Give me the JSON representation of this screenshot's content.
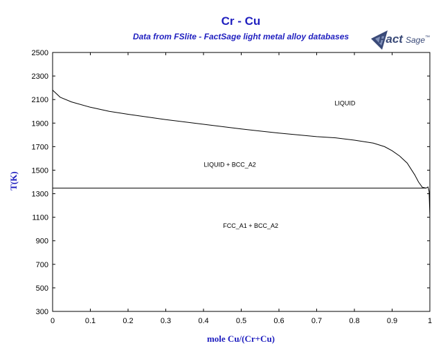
{
  "chart_data": {
    "type": "line",
    "title": "Cr - Cu",
    "subtitle": "Data from FSlite - FactSage light metal alloy databases",
    "xlabel": "mole Cu/(Cr+Cu)",
    "ylabel": "T(K)",
    "xlim": [
      0,
      1
    ],
    "ylim": [
      300,
      2500
    ],
    "x_ticks": [
      "0",
      "0.1",
      "0.2",
      "0.3",
      "0.4",
      "0.5",
      "0.6",
      "0.7",
      "0.8",
      "0.9",
      "1"
    ],
    "y_ticks": [
      "300",
      "500",
      "700",
      "900",
      "1100",
      "1300",
      "1500",
      "1700",
      "1900",
      "2100",
      "2300",
      "2500"
    ],
    "grid": false,
    "series": [
      {
        "x": [
          0,
          0.02,
          0.05,
          0.1,
          0.15,
          0.2,
          0.3,
          0.4,
          0.5,
          0.6,
          0.7,
          0.75,
          0.8,
          0.85,
          0.88,
          0.9,
          0.92,
          0.94,
          0.96,
          0.97,
          0.98,
          0.99
        ],
        "y": [
          2180,
          2120,
          2080,
          2035,
          2000,
          1975,
          1930,
          1890,
          1850,
          1815,
          1785,
          1775,
          1755,
          1730,
          1700,
          1665,
          1620,
          1560,
          1460,
          1400,
          1355,
          1348
        ]
      },
      {
        "x": [
          0,
          0.99
        ],
        "y": [
          1348,
          1348
        ]
      },
      {
        "x": [
          0.99,
          0.995,
          0.998,
          1.0
        ],
        "y": [
          1348,
          1357,
          1320,
          1100
        ]
      }
    ],
    "annotations": [
      {
        "text": "LIQUID",
        "x": 0.775,
        "y": 2050
      },
      {
        "text": "LIQUID + BCC_A2",
        "x": 0.47,
        "y": 1530
      },
      {
        "text": "FCC_A1 + BCC_A2",
        "x": 0.525,
        "y": 1010
      }
    ]
  },
  "logo": {
    "text_main": "Fact",
    "text_sub": "Sage",
    "mark": "™",
    "icon": "factsage-logo-icon"
  }
}
